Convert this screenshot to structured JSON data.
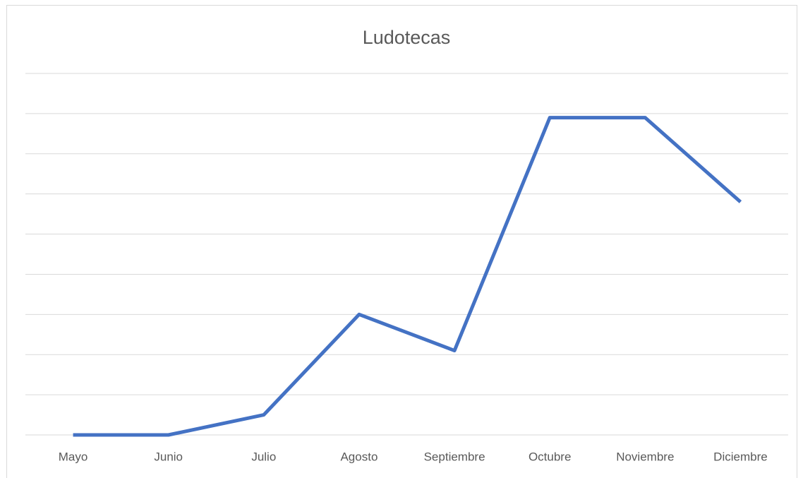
{
  "chart_data": {
    "type": "line",
    "title": "Ludotecas",
    "categories": [
      "Mayo",
      "Junio",
      "Julio",
      "Agosto",
      "Septiembre",
      "Octubre",
      "Noviembre",
      "Diciembre"
    ],
    "series": [
      {
        "name": "Ludotecas",
        "color": "#4472c4",
        "values": [
          0,
          0,
          0.5,
          3,
          2.1,
          7.9,
          7.9,
          5.8
        ]
      }
    ],
    "ylim": [
      0,
      9
    ],
    "yticks": [
      0,
      1,
      2,
      3,
      4,
      5,
      6,
      7,
      8,
      9
    ],
    "grid": true
  }
}
